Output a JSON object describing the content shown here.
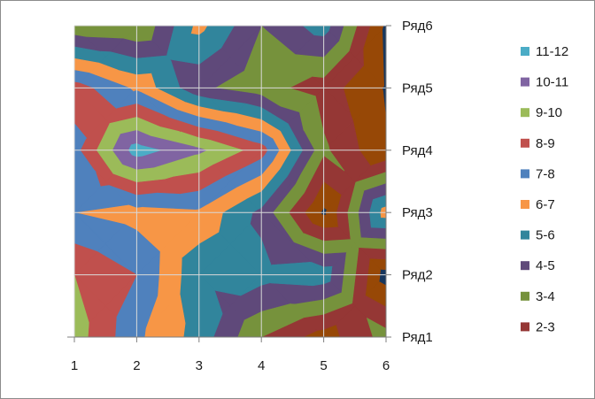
{
  "chart_data": {
    "type": "heatmap",
    "subtype": "contour-surface",
    "x_ticks": [
      "1",
      "2",
      "3",
      "4",
      "5",
      "6"
    ],
    "y_ticks": [
      "Ряд1",
      "Ряд2",
      "Ряд3",
      "Ряд4",
      "Ряд5",
      "Ряд6"
    ],
    "xlim": [
      1,
      6
    ],
    "ylim": [
      1,
      6
    ],
    "z_grid": [
      [
        9.5,
        7.2,
        5.6,
        3.0,
        1.5,
        3.4
      ],
      [
        9.0,
        8.0,
        5.2,
        5.4,
        5.6,
        0.5
      ],
      [
        7.0,
        6.6,
        6.8,
        4.7,
        0.8,
        6.5
      ],
      [
        7.6,
        11.5,
        10.2,
        8.5,
        3.2,
        1.1
      ],
      [
        8.5,
        6.8,
        4.2,
        3.4,
        2.5,
        0.9
      ],
      [
        3.2,
        3.0,
        6.3,
        4.0,
        5.5,
        0.8
      ]
    ],
    "legend": {
      "position": "right",
      "entries": [
        {
          "label": "11-12",
          "color": "#4bacc6"
        },
        {
          "label": "10-11",
          "color": "#8064a2"
        },
        {
          "label": "9-10",
          "color": "#9bbb59"
        },
        {
          "label": "8-9",
          "color": "#c0504d"
        },
        {
          "label": "7-8",
          "color": "#4f81bd"
        },
        {
          "label": "6-7",
          "color": "#f79646"
        },
        {
          "label": "5-6",
          "color": "#31859c"
        },
        {
          "label": "4-5",
          "color": "#5f497a"
        },
        {
          "label": "3-4",
          "color": "#76923c"
        },
        {
          "label": "2-3",
          "color": "#953735"
        }
      ]
    },
    "band_colors": [
      {
        "range": "0-1",
        "color": "#17375e"
      },
      {
        "range": "1-2",
        "color": "#974806"
      },
      {
        "range": "2-3",
        "color": "#953735"
      },
      {
        "range": "3-4",
        "color": "#76923c"
      },
      {
        "range": "4-5",
        "color": "#5f497a"
      },
      {
        "range": "5-6",
        "color": "#31859c"
      },
      {
        "range": "6-7",
        "color": "#f79646"
      },
      {
        "range": "7-8",
        "color": "#4f81bd"
      },
      {
        "range": "8-9",
        "color": "#c0504d"
      },
      {
        "range": "9-10",
        "color": "#9bbb59"
      },
      {
        "range": "10-11",
        "color": "#8064a2"
      },
      {
        "range": "11-12",
        "color": "#4bacc6"
      }
    ],
    "grid": true
  }
}
